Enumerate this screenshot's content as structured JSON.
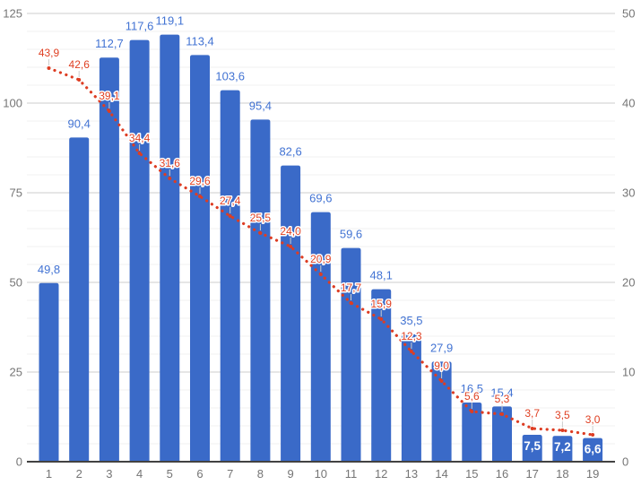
{
  "chart_data": {
    "type": "combo",
    "title": "",
    "legend_position": "none",
    "background": "#ffffff",
    "categories": [
      "1",
      "2",
      "3",
      "4",
      "5",
      "6",
      "7",
      "8",
      "9",
      "10",
      "11",
      "12",
      "13",
      "14",
      "15",
      "16",
      "17",
      "18",
      "19"
    ],
    "series": [
      {
        "name": "bars",
        "type": "bar",
        "axis": "left",
        "color": "#3a6ac8",
        "label_color": "#4273d3",
        "inside_label_color": "#ffffff",
        "inside_label_indices": [
          16,
          17,
          18
        ],
        "values": [
          49.8,
          90.4,
          112.7,
          117.6,
          119.1,
          113.4,
          103.6,
          95.4,
          82.6,
          69.6,
          59.6,
          48.1,
          35.5,
          27.9,
          16.5,
          15.4,
          7.5,
          7.2,
          6.6
        ],
        "labels": [
          "49,8",
          "90,4",
          "112,7",
          "117,6",
          "119,1",
          "113,4",
          "103,6",
          "95,4",
          "82,6",
          "69,6",
          "59,6",
          "48,1",
          "35,5",
          "27,9",
          "16,5",
          "15,4",
          "7,5",
          "7,2",
          "6,6"
        ]
      },
      {
        "name": "dotted-line",
        "type": "line",
        "axis": "right",
        "color": "#dd3d23",
        "label_color": "#df4023",
        "label_outline": "#ffffff",
        "values": [
          43.9,
          42.6,
          39.1,
          34.4,
          31.6,
          29.6,
          27.4,
          25.5,
          24.0,
          20.9,
          17.7,
          15.9,
          12.3,
          9.0,
          5.6,
          5.3,
          3.7,
          3.5,
          3.0
        ],
        "labels": [
          "43,9",
          "42,6",
          "39,1",
          "34,4",
          "31,6",
          "29,6",
          "27,4",
          "25,5",
          "24,0",
          "20,9",
          "17,7",
          "15,9",
          "12,3",
          "9,0",
          "5,6",
          "5,3",
          "3,7",
          "3,5",
          "3,0"
        ]
      }
    ],
    "left_axis": {
      "min": 0,
      "max": 125,
      "ticks": [
        "0",
        "25",
        "50",
        "75",
        "100",
        "125"
      ],
      "minor_step": 5
    },
    "right_axis": {
      "min": 0,
      "max": 50,
      "ticks": [
        "0",
        "10",
        "20",
        "30",
        "40",
        "50"
      ]
    },
    "axis_text_color": "#757575",
    "grid": {
      "major_color": "#cccccc",
      "minor_color": "#f0f0f0",
      "baseline_color": "#424242",
      "stem_color": "#cccccc"
    }
  }
}
